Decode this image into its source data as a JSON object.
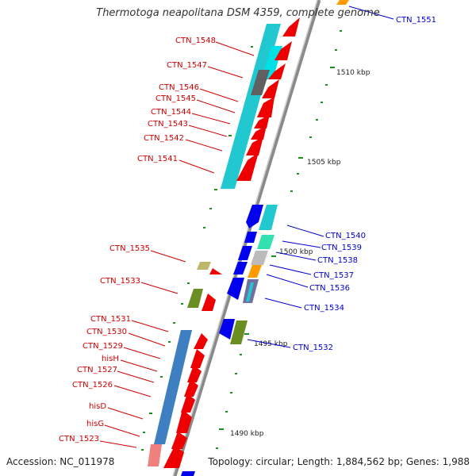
{
  "title": "Thermotoga neapolitana DSM 4359, complete genome",
  "accession": "Accession: NC_011978",
  "summary": "Topology: circular; Length: 1,884,562 bp; Genes: 1,988",
  "colors": {
    "backbone": "#8a8a8a",
    "label_forward": "#d00000",
    "label_reverse": "#0000cc",
    "tick": "#228b22"
  },
  "scale_labels": [
    "1510 kbp",
    "1505 kbp",
    "1500 kbp",
    "1495 kbp",
    "1490 kbp"
  ],
  "genes_left": [
    "CTN_1548",
    "CTN_1547",
    "CTN_1546",
    "CTN_1545",
    "CTN_1544",
    "CTN_1543",
    "CTN_1542",
    "CTN_1541",
    "CTN_1535",
    "CTN_1533",
    "CTN_1531",
    "CTN_1530",
    "CTN_1529",
    "hisH",
    "CTN_1527",
    "CTN_1526",
    "hisD",
    "hisG",
    "CTN_1523"
  ],
  "genes_right": [
    "CTN_1551",
    "CTN_1540",
    "CTN_1539",
    "CTN_1538",
    "CTN_1537",
    "CTN_1536",
    "CTN_1534",
    "CTN_1532"
  ]
}
